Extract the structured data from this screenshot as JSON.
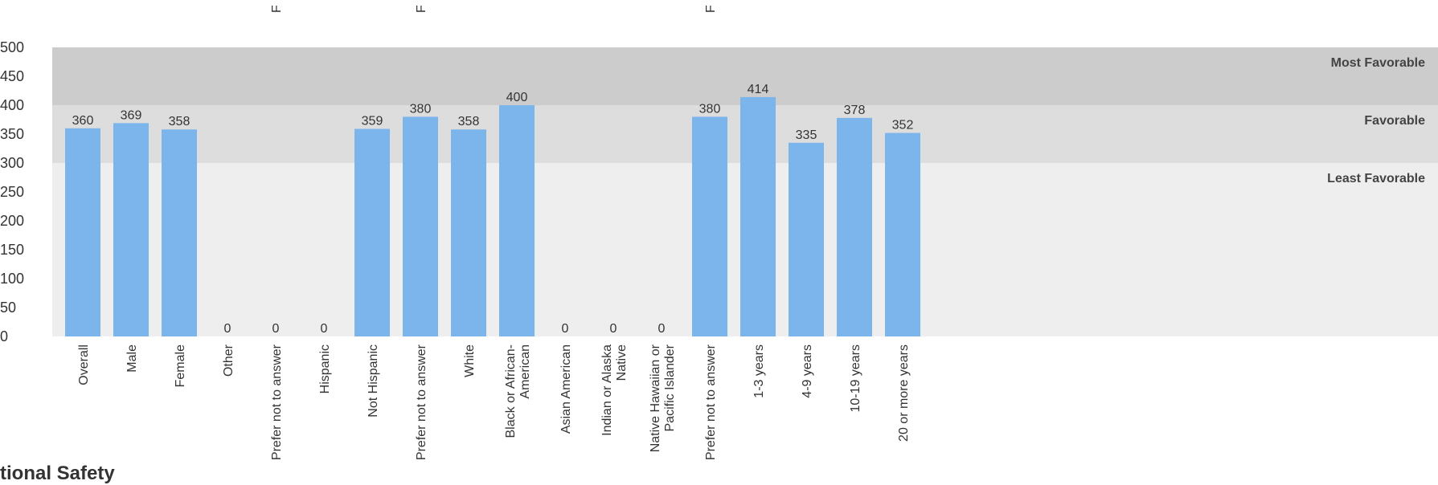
{
  "chart_data": {
    "type": "bar",
    "ylim": [
      0,
      500
    ],
    "yticks": [
      0,
      50,
      100,
      150,
      200,
      250,
      300,
      350,
      400,
      450,
      500
    ],
    "bar_color": "#7cb4ec",
    "bands": [
      {
        "label": "Least Favorable",
        "from": 0,
        "to": 300,
        "color": "#eeeeee"
      },
      {
        "label": "Favorable",
        "from": 300,
        "to": 400,
        "color": "#dddddd"
      },
      {
        "label": "Most Favorable",
        "from": 400,
        "to": 500,
        "color": "#cccccc"
      }
    ],
    "categories": [
      [
        "Overall"
      ],
      [
        "Male"
      ],
      [
        "Female"
      ],
      [
        "Other"
      ],
      [
        "Prefer not to answer"
      ],
      [
        "Hispanic"
      ],
      [
        "Not Hispanic"
      ],
      [
        "Prefer not to answer"
      ],
      [
        "White"
      ],
      [
        "Black or African-",
        "American"
      ],
      [
        "Asian American"
      ],
      [
        "Indian or Alaska",
        "Native"
      ],
      [
        "Native Hawaiian or",
        "Pacific Islander"
      ],
      [
        "Prefer not to answer"
      ],
      [
        "1-3 years"
      ],
      [
        "4-9 years"
      ],
      [
        "10-19 years"
      ],
      [
        "20 or more years"
      ]
    ],
    "values": [
      360,
      369,
      358,
      0,
      0,
      0,
      359,
      380,
      358,
      400,
      0,
      0,
      0,
      380,
      414,
      335,
      378,
      352
    ],
    "top_cut_labels": [
      "F",
      "F",
      "F"
    ]
  },
  "section_heading": "tional Safety"
}
